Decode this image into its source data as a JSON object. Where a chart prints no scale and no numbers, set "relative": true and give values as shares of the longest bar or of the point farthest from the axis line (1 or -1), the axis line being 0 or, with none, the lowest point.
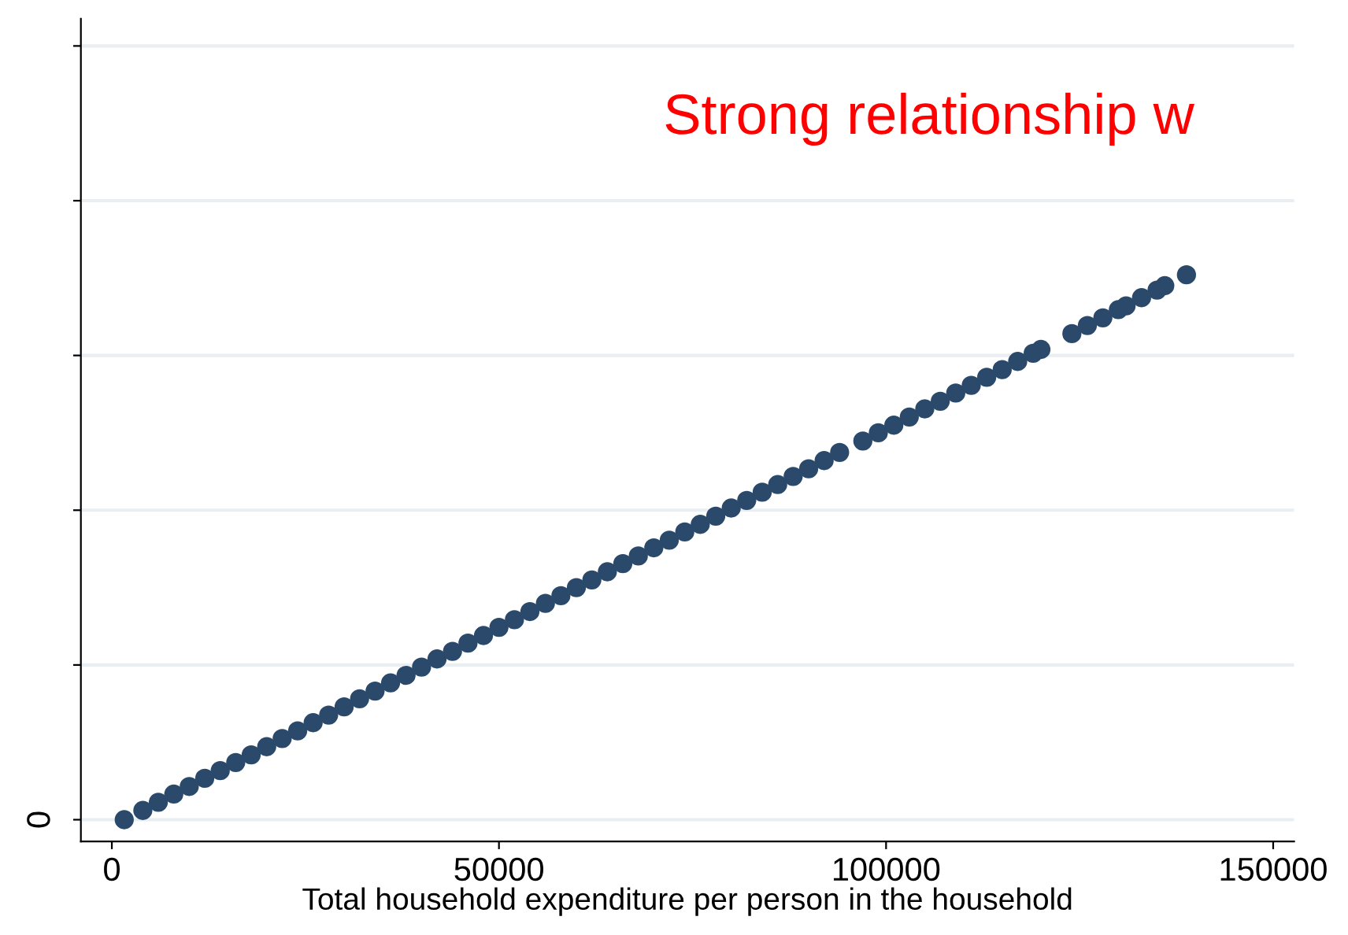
{
  "chart_data": {
    "type": "scatter",
    "relative": true,
    "xlabel": "Total household expenditure per person in the household",
    "annotations": [
      "Strong relationship w",
      "0"
    ],
    "x": [
      1600,
      4000,
      6000,
      8000,
      10000,
      12000,
      14000,
      16000,
      18000,
      20000,
      22000,
      24000,
      26000,
      28000,
      30000,
      32000,
      34000,
      36000,
      38000,
      40000,
      42000,
      44000,
      46000,
      48000,
      50000,
      52000,
      54000,
      56000,
      58000,
      60000,
      62000,
      64000,
      66000,
      68000,
      70000,
      72000,
      74000,
      76000,
      78000,
      80000,
      82000,
      84000,
      86000,
      88000,
      90000,
      92000,
      94000,
      97000,
      99000,
      101000,
      103000,
      105000,
      107000,
      109000,
      111000,
      113000,
      115000,
      117000,
      119000,
      120000,
      124000,
      126000,
      128000,
      130000,
      131000,
      133000,
      135000,
      136000,
      138800
    ],
    "series": [
      {
        "color": "#2b4a6b",
        "values": [
          0,
          0.017,
          0.032,
          0.047,
          0.061,
          0.076,
          0.09,
          0.105,
          0.119,
          0.134,
          0.149,
          0.163,
          0.178,
          0.192,
          0.207,
          0.222,
          0.236,
          0.251,
          0.265,
          0.28,
          0.295,
          0.309,
          0.324,
          0.338,
          0.353,
          0.367,
          0.382,
          0.397,
          0.411,
          0.426,
          0.44,
          0.455,
          0.47,
          0.484,
          0.499,
          0.513,
          0.528,
          0.542,
          0.557,
          0.572,
          0.586,
          0.601,
          0.615,
          0.63,
          0.644,
          0.659,
          0.674,
          0.695,
          0.71,
          0.724,
          0.739,
          0.754,
          0.768,
          0.783,
          0.797,
          0.812,
          0.826,
          0.841,
          0.856,
          0.863,
          0.892,
          0.907,
          0.921,
          0.936,
          0.943,
          0.958,
          0.972,
          0.98,
          1
        ]
      }
    ],
    "xlim": [
      -4000,
      152700
    ],
    "xticks": [
      0,
      50000,
      100000,
      150000
    ],
    "grid": "y",
    "marker": "circle"
  }
}
